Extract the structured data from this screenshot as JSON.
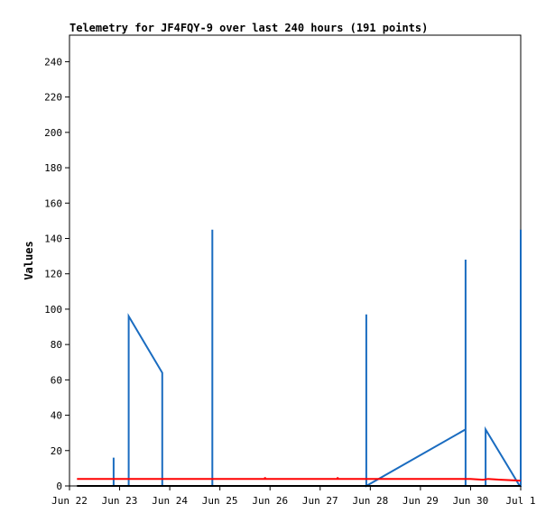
{
  "chart_data": {
    "type": "line",
    "title": "Telemetry for JF4FQY-9 over last 240 hours (191 points)",
    "xlabel": "",
    "ylabel": "Values",
    "x_unit": "days",
    "xlim": [
      0,
      9
    ],
    "ylim": [
      0,
      255
    ],
    "x_ticks": [
      {
        "value": 0,
        "label": "Jun 22"
      },
      {
        "value": 1,
        "label": "Jun 23"
      },
      {
        "value": 2,
        "label": "Jun 24"
      },
      {
        "value": 3,
        "label": "Jun 25"
      },
      {
        "value": 4,
        "label": "Jun 26"
      },
      {
        "value": 5,
        "label": "Jun 27"
      },
      {
        "value": 6,
        "label": "Jun 28"
      },
      {
        "value": 7,
        "label": "Jun 29"
      },
      {
        "value": 8,
        "label": "Jun 30"
      },
      {
        "value": 9,
        "label": "Jul 1"
      }
    ],
    "y_ticks": [
      0,
      20,
      40,
      60,
      80,
      100,
      120,
      140,
      160,
      180,
      200,
      220,
      240
    ],
    "grid": false,
    "series": [
      {
        "color": "#1a6cc0",
        "points": [
          [
            0.88,
            0
          ],
          [
            0.88,
            16
          ],
          [
            0.88,
            0
          ],
          [
            1.18,
            0
          ],
          [
            1.18,
            96
          ],
          [
            1.85,
            64
          ],
          [
            1.85,
            0
          ],
          [
            2.85,
            0
          ],
          [
            2.85,
            145
          ],
          [
            2.85,
            0
          ],
          [
            5.92,
            0
          ],
          [
            5.92,
            97
          ],
          [
            5.92,
            0
          ],
          [
            7.9,
            32
          ],
          [
            7.9,
            128
          ],
          [
            7.9,
            0
          ],
          [
            8.3,
            0
          ],
          [
            8.3,
            32
          ],
          [
            8.98,
            0
          ],
          [
            9.0,
            0
          ],
          [
            9.0,
            145
          ]
        ]
      },
      {
        "color": "#ff0000",
        "points": [
          [
            0.15,
            4
          ],
          [
            3.9,
            4
          ],
          [
            3.9,
            5
          ],
          [
            3.9,
            4
          ],
          [
            5.35,
            4
          ],
          [
            5.35,
            5
          ],
          [
            5.35,
            4
          ],
          [
            8.0,
            4
          ],
          [
            8.25,
            3.5
          ],
          [
            8.35,
            4
          ],
          [
            8.6,
            3.5
          ],
          [
            9.0,
            3
          ]
        ]
      },
      {
        "color": "#000000",
        "points": [
          [
            0.15,
            0
          ],
          [
            9.0,
            0
          ]
        ]
      }
    ]
  }
}
